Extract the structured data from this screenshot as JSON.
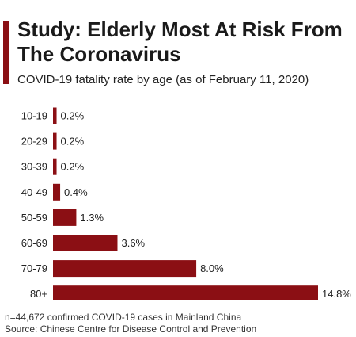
{
  "header": {
    "title": "Study: Elderly Most At Risk From The Coronavirus",
    "subtitle": "COVID-19 fatality rate by age (as of February 11, 2020)"
  },
  "colors": {
    "accent": "#8b0f14",
    "bar": "#8b0f14"
  },
  "chart_data": {
    "type": "bar",
    "orientation": "horizontal",
    "title": "Study: Elderly Most At Risk From The Coronavirus",
    "subtitle": "COVID-19 fatality rate by age (as of February 11, 2020)",
    "categories": [
      "10-19",
      "20-29",
      "30-39",
      "40-49",
      "50-59",
      "60-69",
      "70-79",
      "80+"
    ],
    "values": [
      0.2,
      0.2,
      0.2,
      0.4,
      1.3,
      3.6,
      8.0,
      14.8
    ],
    "value_labels": [
      "0.2%",
      "0.2%",
      "0.2%",
      "0.4%",
      "1.3%",
      "3.6%",
      "8.0%",
      "14.8%"
    ],
    "unit": "%",
    "xlim": [
      0,
      14.8
    ],
    "grid": false,
    "legend": "none"
  },
  "footer": {
    "note": "n=44,672 confirmed COVID-19 cases in Mainland China",
    "source": "Source: Chinese Centre for Disease Control and Prevention"
  }
}
